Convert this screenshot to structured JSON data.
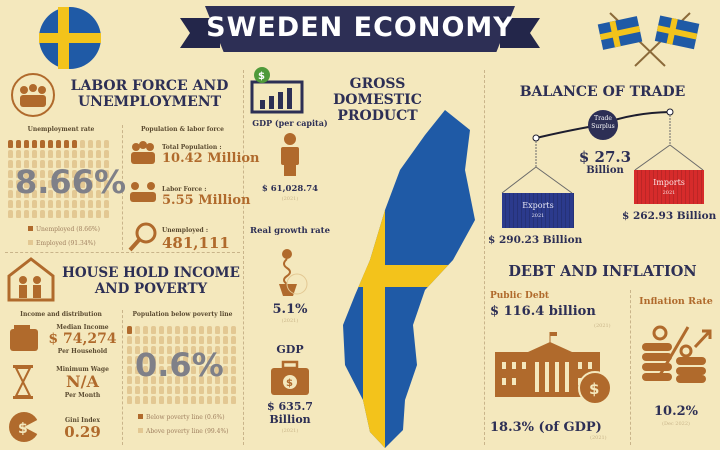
{
  "title": "SWEDEN ECONOMY",
  "colors": {
    "background": "#f4e8bd",
    "brown": "#b06a2c",
    "navy": "#2d2f55",
    "flag_blue": "#1f5aa6",
    "flag_yellow": "#f3c31b",
    "imports_red": "#d62b2b",
    "exports_blue": "#2b3a8c"
  },
  "labor": {
    "heading": "LABOR FORCE AND UNEMPLOYMENT",
    "unemployment_label": "Unemployment rate",
    "unemployment_rate": "8.66%",
    "unemployment_fraction": 0.0866,
    "legend_unemployed": "Unemployed (8.66%)",
    "legend_employed": "Employed (91.34%)",
    "pop_label": "Population & labor force",
    "total_pop_label": "Total Population :",
    "total_pop": "10.42 Million",
    "labor_force_label": "Labor Force :",
    "labor_force": "5.55 Million",
    "unemployed_label": "Unemployed :",
    "unemployed": "481,111"
  },
  "household": {
    "heading": "HOUSE HOLD INCOME AND POVERTY",
    "income_label": "Income and distribution",
    "median_label": "Median Income",
    "median": "$ 74,274",
    "median_sub": "Per Household",
    "min_wage_label": "Minimum Wage",
    "min_wage": "N/A",
    "min_wage_sub": "Per Month",
    "gini_label": "Gini Index",
    "gini": "0.29",
    "poverty_label": "Population below poverty line",
    "poverty": "0.6%",
    "poverty_fraction": 0.006,
    "legend_below": "Below poverty line (0.6%)",
    "legend_above": "Above poverty line (99.4%)"
  },
  "gdp": {
    "heading": "GROSS DOMESTIC PRODUCT",
    "per_capita_label": "GDP (per capita)",
    "per_capita": "$ 61,028.74",
    "growth_label": "Real growth rate",
    "growth": "5.1%",
    "gdp_label": "GDP",
    "gdp": "$ 635.7 Billion",
    "year": "(2021)"
  },
  "trade": {
    "heading": "BALANCE OF TRADE",
    "surplus_label": "Trade Surplus",
    "surplus": "$ 27.3",
    "surplus_unit": "Billion",
    "exports_label": "Exports",
    "exports_year": "2021",
    "exports": "$ 290.23 Billion",
    "imports_label": "Imports",
    "imports_year": "2021",
    "imports": "$ 262.93 Billion"
  },
  "debt": {
    "heading": "DEBT AND INFLATION",
    "public_debt_label": "Public Debt",
    "public_debt": "$ 116.4 billion",
    "year": "(2021)",
    "pct_gdp": "18.3% (of GDP)",
    "inflation_label": "Inflation Rate",
    "inflation": "10.2%",
    "inflation_date": "(Dec 2022)"
  }
}
